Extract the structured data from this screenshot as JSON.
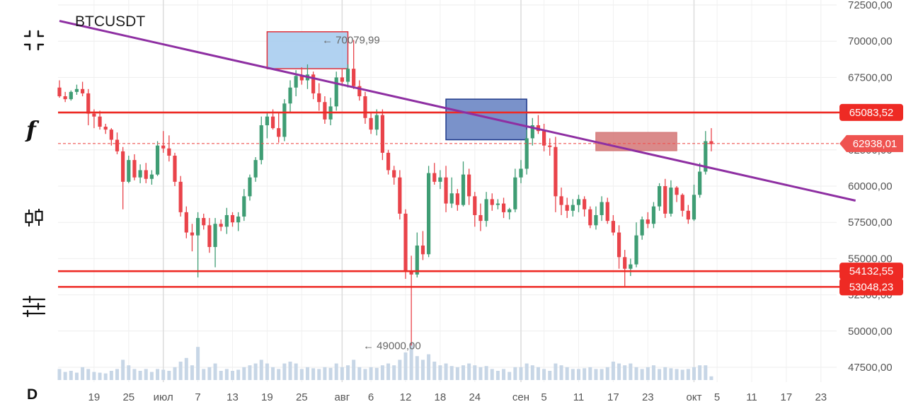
{
  "symbol": "BTCUSDT",
  "timeframe": "D",
  "toolbar": {
    "icons": [
      "fullscreen-icon",
      "indicator-function-icon",
      "candlestick-icon",
      "settings-sliders-icon"
    ]
  },
  "chart_data": {
    "type": "candlestick",
    "title": "BTCUSDT",
    "ylim": [
      47000,
      72500
    ],
    "y_ticks": [
      "72500,00",
      "70000,00",
      "67500,00",
      "65000,00",
      "62500,00",
      "60000,00",
      "57500,00",
      "55000,00",
      "52500,00",
      "50000,00",
      "47500,00"
    ],
    "x_ticks": [
      "19",
      "25",
      "июл",
      "7",
      "13",
      "19",
      "25",
      "авг",
      "6",
      "12",
      "18",
      "24",
      "сен",
      "5",
      "11",
      "17",
      "23",
      "окт",
      "5",
      "11",
      "17",
      "23"
    ],
    "date_range": [
      "2024-06-13",
      "2024-09-20"
    ],
    "ohlc": [
      [
        66800,
        67300,
        66100,
        66200
      ],
      [
        66200,
        66500,
        65800,
        66000
      ],
      [
        66000,
        66600,
        65900,
        66500
      ],
      [
        66500,
        67000,
        66300,
        66700
      ],
      [
        66700,
        67200,
        66200,
        66400
      ],
      [
        66400,
        66700,
        64200,
        65000
      ],
      [
        65000,
        65300,
        64000,
        64800
      ],
      [
        64800,
        65200,
        63900,
        64100
      ],
      [
        64100,
        64300,
        63600,
        63900
      ],
      [
        63900,
        64000,
        62800,
        63200
      ],
      [
        63200,
        63700,
        62200,
        62400
      ],
      [
        62400,
        62700,
        58400,
        60300
      ],
      [
        60300,
        62100,
        60200,
        61800
      ],
      [
        61800,
        62200,
        60400,
        60600
      ],
      [
        60600,
        61500,
        60200,
        61100
      ],
      [
        61100,
        61600,
        60200,
        60500
      ],
      [
        60500,
        61100,
        60100,
        60800
      ],
      [
        60800,
        63100,
        60700,
        62800
      ],
      [
        62800,
        63800,
        62300,
        62600
      ],
      [
        62600,
        63500,
        61700,
        62100
      ],
      [
        62100,
        62300,
        60000,
        60300
      ],
      [
        60300,
        60700,
        57900,
        58200
      ],
      [
        58200,
        58600,
        56400,
        56800
      ],
      [
        56800,
        57400,
        55500,
        56600
      ],
      [
        56600,
        58200,
        53700,
        57800
      ],
      [
        57800,
        58100,
        57000,
        57300
      ],
      [
        57300,
        57800,
        55400,
        55800
      ],
      [
        55800,
        57800,
        54400,
        57400
      ],
      [
        57400,
        57700,
        56900,
        57200
      ],
      [
        57200,
        58500,
        56700,
        58000
      ],
      [
        58000,
        58200,
        57200,
        57500
      ],
      [
        57500,
        58200,
        56900,
        57900
      ],
      [
        57900,
        59800,
        57600,
        59300
      ],
      [
        59300,
        60800,
        59000,
        60600
      ],
      [
        60600,
        62000,
        60300,
        61800
      ],
      [
        61800,
        64800,
        61500,
        64200
      ],
      [
        64200,
        65100,
        63300,
        64800
      ],
      [
        64800,
        65300,
        63900,
        64000
      ],
      [
        64000,
        65100,
        63000,
        63400
      ],
      [
        63400,
        66000,
        63100,
        65700
      ],
      [
        65700,
        67300,
        65100,
        66800
      ],
      [
        66800,
        68000,
        66200,
        67600
      ],
      [
        67600,
        68200,
        67000,
        67300
      ],
      [
        67300,
        68400,
        66700,
        67700
      ],
      [
        67700,
        67900,
        66000,
        66400
      ],
      [
        66400,
        67100,
        65200,
        65800
      ],
      [
        65800,
        66200,
        64300,
        64600
      ],
      [
        64600,
        66100,
        64200,
        65500
      ],
      [
        65500,
        67900,
        65200,
        67500
      ],
      [
        67500,
        68100,
        66900,
        67200
      ],
      [
        67200,
        68400,
        66800,
        68100
      ],
      [
        68100,
        70080,
        66700,
        66900
      ],
      [
        66900,
        67300,
        65900,
        66200
      ],
      [
        66200,
        66500,
        64300,
        64700
      ],
      [
        64700,
        65100,
        63600,
        63900
      ],
      [
        63900,
        65300,
        63500,
        64900
      ],
      [
        64900,
        65300,
        61800,
        62300
      ],
      [
        62300,
        62500,
        60800,
        61100
      ],
      [
        61100,
        61400,
        60100,
        60600
      ],
      [
        60600,
        61100,
        57700,
        58100
      ],
      [
        58100,
        58400,
        53600,
        54100
      ],
      [
        54100,
        55200,
        49000,
        53900
      ],
      [
        53900,
        56800,
        53700,
        55900
      ],
      [
        55900,
        56900,
        54900,
        55300
      ],
      [
        55300,
        61400,
        55100,
        60900
      ],
      [
        60900,
        61600,
        60100,
        60300
      ],
      [
        60300,
        61100,
        59800,
        60600
      ],
      [
        60600,
        61400,
        58200,
        58800
      ],
      [
        58800,
        60600,
        58500,
        59500
      ],
      [
        59500,
        59800,
        58300,
        58700
      ],
      [
        58700,
        61700,
        58600,
        60800
      ],
      [
        60800,
        61200,
        58700,
        59300
      ],
      [
        59300,
        59600,
        57200,
        58000
      ],
      [
        58000,
        58800,
        56900,
        57600
      ],
      [
        57600,
        59600,
        57200,
        59100
      ],
      [
        59100,
        59500,
        58300,
        58700
      ],
      [
        58700,
        59100,
        58400,
        58800
      ],
      [
        58800,
        59200,
        57800,
        58200
      ],
      [
        58200,
        58500,
        57700,
        58400
      ],
      [
        58400,
        61200,
        58200,
        60600
      ],
      [
        60600,
        61800,
        60200,
        61200
      ],
      [
        61200,
        63900,
        60800,
        63300
      ],
      [
        63300,
        64700,
        62800,
        64200
      ],
      [
        64200,
        64900,
        63600,
        63800
      ],
      [
        63800,
        64300,
        62400,
        62800
      ],
      [
        62800,
        63300,
        62100,
        62700
      ],
      [
        62700,
        63400,
        58200,
        59300
      ],
      [
        59300,
        59900,
        58000,
        58700
      ],
      [
        58700,
        59200,
        57800,
        58300
      ],
      [
        58300,
        59100,
        57900,
        58700
      ],
      [
        58700,
        59400,
        58200,
        59100
      ],
      [
        59100,
        59300,
        57900,
        58400
      ],
      [
        58400,
        58600,
        57100,
        57300
      ],
      [
        57300,
        58600,
        57000,
        58000
      ],
      [
        58000,
        59300,
        57600,
        58900
      ],
      [
        58900,
        59200,
        57400,
        57600
      ],
      [
        57600,
        58000,
        56600,
        56800
      ],
      [
        56800,
        57300,
        54300,
        55100
      ],
      [
        55100,
        55600,
        53100,
        54300
      ],
      [
        54300,
        55000,
        53800,
        54600
      ],
      [
        54600,
        57500,
        54400,
        56600
      ],
      [
        56600,
        57900,
        56300,
        57700
      ],
      [
        57700,
        58200,
        57100,
        57400
      ],
      [
        57400,
        58900,
        57100,
        58600
      ],
      [
        58600,
        60200,
        58300,
        60000
      ],
      [
        60000,
        60500,
        57800,
        58100
      ],
      [
        58100,
        60400,
        57900,
        59900
      ],
      [
        59900,
        60000,
        58900,
        59400
      ],
      [
        59400,
        59500,
        57900,
        58300
      ],
      [
        58300,
        58700,
        57400,
        57700
      ],
      [
        57700,
        60100,
        57600,
        59400
      ],
      [
        59400,
        61600,
        59200,
        61000
      ],
      [
        61000,
        63800,
        60800,
        63100
      ],
      [
        63100,
        64000,
        62400,
        62900
      ]
    ],
    "volume": [
      0.3,
      0.22,
      0.25,
      0.2,
      0.35,
      0.3,
      0.22,
      0.2,
      0.18,
      0.25,
      0.3,
      0.55,
      0.4,
      0.3,
      0.25,
      0.3,
      0.22,
      0.3,
      0.28,
      0.25,
      0.35,
      0.5,
      0.6,
      0.4,
      0.9,
      0.3,
      0.35,
      0.45,
      0.25,
      0.3,
      0.25,
      0.28,
      0.35,
      0.4,
      0.45,
      0.55,
      0.45,
      0.35,
      0.3,
      0.45,
      0.5,
      0.45,
      0.3,
      0.35,
      0.32,
      0.3,
      0.35,
      0.33,
      0.45,
      0.35,
      0.4,
      0.55,
      0.35,
      0.3,
      0.35,
      0.33,
      0.4,
      0.45,
      0.4,
      0.55,
      0.75,
      1.0,
      0.65,
      0.55,
      0.7,
      0.5,
      0.4,
      0.45,
      0.38,
      0.35,
      0.4,
      0.45,
      0.4,
      0.35,
      0.38,
      0.3,
      0.25,
      0.3,
      0.22,
      0.35,
      0.35,
      0.45,
      0.4,
      0.35,
      0.3,
      0.25,
      0.45,
      0.4,
      0.35,
      0.3,
      0.3,
      0.32,
      0.35,
      0.3,
      0.3,
      0.35,
      0.5,
      0.45,
      0.4,
      0.45,
      0.35,
      0.3,
      0.35,
      0.4,
      0.3,
      0.35,
      0.32,
      0.3,
      0.28,
      0.3,
      0.35,
      0.4,
      0.4,
      0.1
    ],
    "horizontal_levels": [
      {
        "value": 65083.52,
        "label": "65083,52",
        "color": "#ee2a24"
      },
      {
        "value": 54132.55,
        "label": "54132,55",
        "color": "#ee2a24"
      },
      {
        "value": 53048.23,
        "label": "53048,23",
        "color": "#ee2a24"
      }
    ],
    "current_price": {
      "value": 62938.01,
      "label": "62938,01",
      "color": "#ef5350"
    },
    "annotations": [
      {
        "text": "← 70079,99",
        "price": 70079.99
      },
      {
        "text": "← 49000,00",
        "price": 49000.0
      }
    ],
    "trendline": {
      "color": "#8e2fa2",
      "from": {
        "date": "2024-06-13",
        "price": 71400
      },
      "to": {
        "date": "2024-10-29",
        "price": 59000
      }
    },
    "zones": [
      {
        "from_date": "2024-07-19",
        "to_date": "2024-08-02",
        "price_top": 70650,
        "price_bottom": 68100,
        "fill": "#a8cdf0",
        "stroke": "#e0303a"
      },
      {
        "from_date": "2024-08-19",
        "to_date": "2024-09-02",
        "price_top": 66000,
        "price_bottom": 63200,
        "fill": "#6b86c4",
        "stroke": "#1f3a8a"
      },
      {
        "from_date": "2024-09-14",
        "to_date": "2024-09-28",
        "price_top": 63700,
        "price_bottom": 62450,
        "fill": "#d67d7d",
        "stroke": "#d67d7d"
      }
    ],
    "colors": {
      "up": "#3f9d74",
      "down": "#e9434a",
      "volume": "#c7d6e6"
    }
  }
}
